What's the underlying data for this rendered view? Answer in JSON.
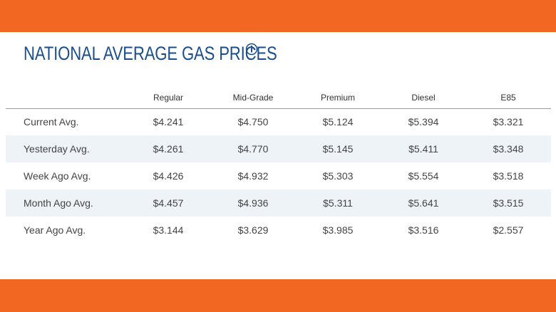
{
  "header": {
    "title": "NATIONAL AVERAGE GAS PRICES"
  },
  "table": {
    "columns": [
      "Regular",
      "Mid-Grade",
      "Premium",
      "Diesel",
      "E85"
    ],
    "rows": [
      {
        "label": "Current Avg.",
        "values": [
          "$4.241",
          "$4.750",
          "$5.124",
          "$5.394",
          "$3.321"
        ]
      },
      {
        "label": "Yesterday Avg.",
        "values": [
          "$4.261",
          "$4.770",
          "$5.145",
          "$5.411",
          "$3.348"
        ]
      },
      {
        "label": "Week Ago Avg.",
        "values": [
          "$4.426",
          "$4.932",
          "$5.303",
          "$5.554",
          "$3.518"
        ]
      },
      {
        "label": "Month Ago Avg.",
        "values": [
          "$4.457",
          "$4.936",
          "$5.311",
          "$5.641",
          "$3.515"
        ]
      },
      {
        "label": "Year Ago Avg.",
        "values": [
          "$3.144",
          "$3.629",
          "$3.985",
          "$3.516",
          "$2.557"
        ]
      }
    ]
  }
}
